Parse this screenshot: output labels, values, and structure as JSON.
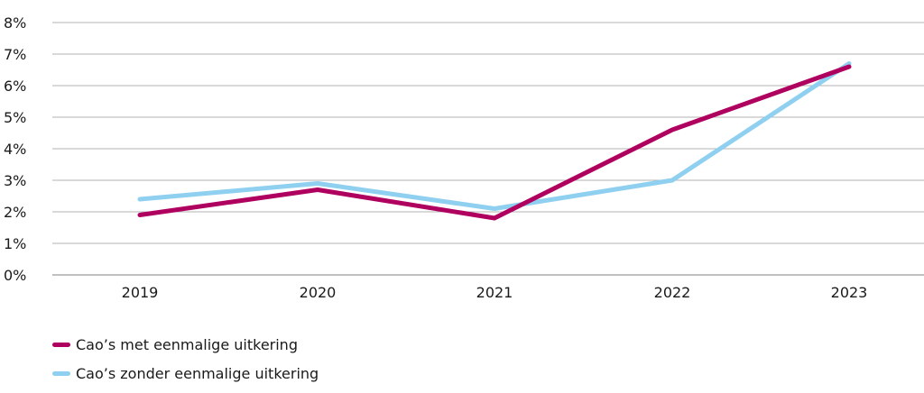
{
  "chart_data": {
    "type": "line",
    "title": "",
    "xlabel": "",
    "ylabel": "",
    "categories": [
      "2019",
      "2020",
      "2021",
      "2022",
      "2023"
    ],
    "ylim": [
      0,
      8
    ],
    "yticks": [
      "0%",
      "1%",
      "2%",
      "3%",
      "4%",
      "5%",
      "6%",
      "7%",
      "8%"
    ],
    "grid": true,
    "legend_position": "bottom-left",
    "series": [
      {
        "name": "Cao’s met eenmalige uitkering",
        "values": [
          1.9,
          2.7,
          1.8,
          4.6,
          6.6
        ],
        "color": "#b0005f"
      },
      {
        "name": "Cao’s zonder eenmalige uitkering",
        "values": [
          2.4,
          2.9,
          2.1,
          3.0,
          6.7
        ],
        "color": "#8fd0f0"
      }
    ]
  },
  "colors": {
    "grid": "#b3b3b3",
    "axis": "#808080"
  }
}
